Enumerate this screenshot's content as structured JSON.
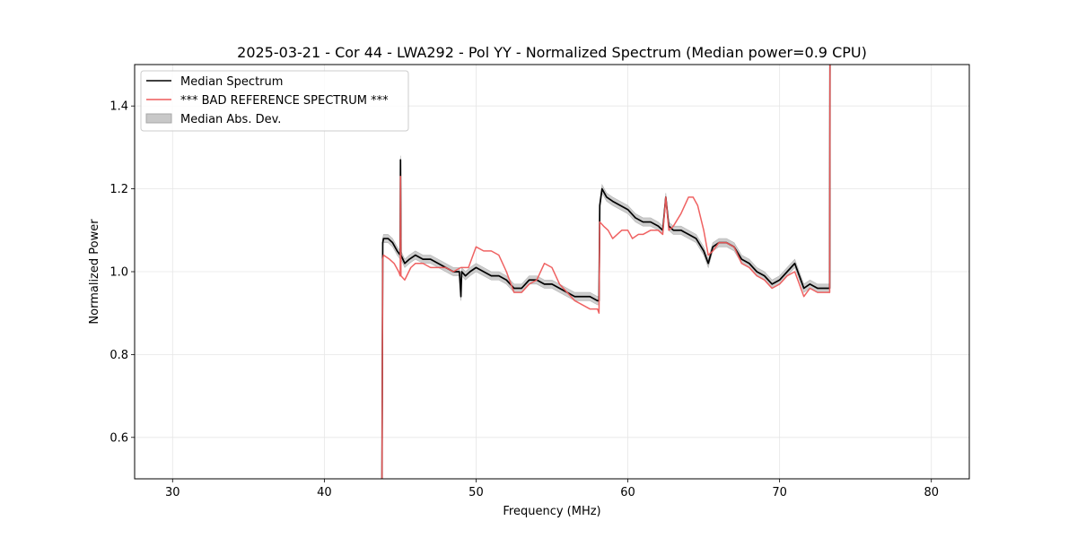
{
  "chart_data": {
    "type": "line",
    "title": "2025-03-21 - Cor 44 - LWA292 - Pol YY - Normalized Spectrum (Median power=0.9 CPU)",
    "xlabel": "Frequency (MHz)",
    "ylabel": "Normalized Power",
    "xlim": [
      27.5,
      82.5
    ],
    "ylim": [
      0.5,
      1.5
    ],
    "xticks": [
      30,
      40,
      50,
      60,
      70,
      80
    ],
    "yticks": [
      0.6,
      0.8,
      1.0,
      1.2,
      1.4
    ],
    "xtick_labels": [
      "30",
      "40",
      "50",
      "60",
      "70",
      "80"
    ],
    "ytick_labels": [
      "0.6",
      "0.8",
      "1.0",
      "1.2",
      "1.4"
    ],
    "grid": true,
    "legend_position": "top-left",
    "legend": [
      {
        "label": "Median Spectrum",
        "kind": "line",
        "color": "#000000"
      },
      {
        "label": "*** BAD REFERENCE SPECTRUM ***",
        "kind": "line",
        "color": "#ee5a5a"
      },
      {
        "label": "Median Abs. Dev.",
        "kind": "patch",
        "color": "#c8c8c8"
      }
    ],
    "series": [
      {
        "name": "Median Spectrum",
        "color": "#000000",
        "x": [
          43.8,
          43.85,
          43.9,
          44.2,
          44.5,
          44.8,
          45.0,
          45.02,
          45.05,
          45.3,
          45.6,
          46.0,
          46.5,
          47.0,
          47.5,
          48.0,
          48.5,
          48.9,
          49.0,
          49.05,
          49.3,
          49.6,
          50.0,
          50.5,
          51.0,
          51.5,
          52.0,
          52.5,
          53.0,
          53.5,
          54.0,
          54.5,
          55.0,
          55.5,
          56.0,
          56.5,
          57.0,
          57.5,
          58.0,
          58.1,
          58.15,
          58.3,
          58.6,
          59.0,
          59.5,
          60.0,
          60.5,
          61.0,
          61.5,
          62.0,
          62.3,
          62.5,
          62.7,
          63.0,
          63.5,
          64.0,
          64.5,
          65.0,
          65.3,
          65.6,
          66.0,
          66.5,
          67.0,
          67.5,
          68.0,
          68.5,
          69.0,
          69.5,
          70.0,
          70.5,
          71.0,
          71.3,
          71.6,
          72.0,
          72.5,
          73.0,
          73.3,
          73.32
        ],
        "values": [
          0.5,
          1.07,
          1.08,
          1.08,
          1.07,
          1.05,
          1.04,
          1.27,
          1.04,
          1.02,
          1.03,
          1.04,
          1.03,
          1.03,
          1.02,
          1.01,
          1.0,
          1.0,
          0.94,
          1.0,
          0.99,
          1.0,
          1.01,
          1.0,
          0.99,
          0.99,
          0.98,
          0.96,
          0.96,
          0.98,
          0.98,
          0.97,
          0.97,
          0.96,
          0.95,
          0.94,
          0.94,
          0.94,
          0.93,
          0.93,
          1.16,
          1.2,
          1.18,
          1.17,
          1.16,
          1.15,
          1.13,
          1.12,
          1.12,
          1.11,
          1.1,
          1.18,
          1.11,
          1.1,
          1.1,
          1.09,
          1.08,
          1.05,
          1.02,
          1.06,
          1.07,
          1.07,
          1.06,
          1.03,
          1.02,
          1.0,
          0.99,
          0.97,
          0.98,
          1.0,
          1.02,
          0.99,
          0.96,
          0.97,
          0.96,
          0.96,
          0.96,
          1.5
        ]
      },
      {
        "name": "*** BAD REFERENCE SPECTRUM ***",
        "color": "#ee5a5a",
        "x": [
          43.8,
          43.85,
          43.9,
          44.3,
          44.6,
          44.9,
          45.0,
          45.02,
          45.05,
          45.3,
          45.7,
          46.0,
          46.5,
          47.0,
          47.5,
          48.0,
          48.5,
          49.0,
          49.5,
          50.0,
          50.5,
          51.0,
          51.5,
          52.0,
          52.5,
          53.0,
          53.5,
          54.0,
          54.5,
          55.0,
          55.5,
          56.0,
          56.5,
          57.0,
          57.5,
          58.0,
          58.1,
          58.15,
          58.4,
          58.7,
          59.0,
          59.3,
          59.6,
          60.0,
          60.3,
          60.7,
          61.0,
          61.5,
          62.0,
          62.3,
          62.5,
          62.7,
          63.0,
          63.5,
          64.0,
          64.3,
          64.6,
          65.0,
          65.3,
          65.6,
          66.0,
          66.5,
          67.0,
          67.5,
          68.0,
          68.5,
          69.0,
          69.5,
          70.0,
          70.5,
          71.0,
          71.3,
          71.6,
          72.0,
          72.5,
          73.0,
          73.3,
          73.32
        ],
        "values": [
          0.5,
          1.03,
          1.04,
          1.03,
          1.02,
          1.0,
          0.99,
          1.23,
          0.99,
          0.98,
          1.01,
          1.02,
          1.02,
          1.01,
          1.01,
          1.01,
          1.0,
          1.01,
          1.01,
          1.06,
          1.05,
          1.05,
          1.04,
          1.0,
          0.95,
          0.95,
          0.97,
          0.98,
          1.02,
          1.01,
          0.97,
          0.95,
          0.93,
          0.92,
          0.91,
          0.91,
          0.9,
          1.12,
          1.11,
          1.1,
          1.08,
          1.09,
          1.1,
          1.1,
          1.08,
          1.09,
          1.09,
          1.1,
          1.1,
          1.09,
          1.18,
          1.1,
          1.11,
          1.14,
          1.18,
          1.18,
          1.16,
          1.1,
          1.04,
          1.05,
          1.07,
          1.07,
          1.06,
          1.02,
          1.01,
          0.99,
          0.98,
          0.96,
          0.97,
          0.99,
          1.0,
          0.97,
          0.94,
          0.96,
          0.95,
          0.95,
          0.95,
          1.5
        ]
      }
    ],
    "band": {
      "name": "Median Abs. Dev.",
      "color": "#c8c8c8",
      "offset": 0.01
    }
  }
}
